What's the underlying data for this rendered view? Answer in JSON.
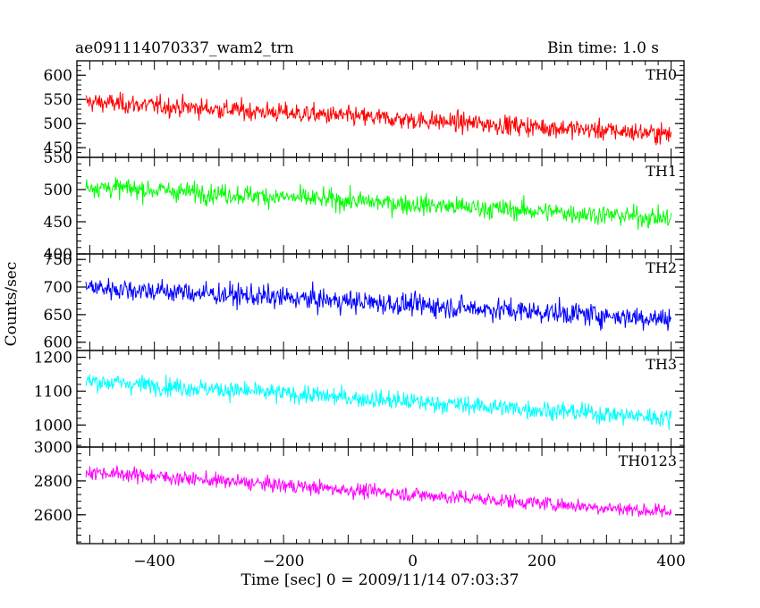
{
  "figure": {
    "title_left": "ae091114070337_wam2_trn",
    "title_right": "Bin time: 1.0 s"
  },
  "chart_data": {
    "type": "line",
    "xlabel": "Time [sec] 0 = 2009/11/14 07:03:37",
    "ylabel": "Counts/sec",
    "xlim": [
      -520,
      420
    ],
    "x_ticks": [
      -400,
      -200,
      0,
      200,
      400
    ],
    "x_start": -506,
    "x_end": 400,
    "bin_time": 1.0,
    "panels": [
      {
        "name": "TH0",
        "color": "#ff0000",
        "ylim": [
          430,
          630
        ],
        "y_ticks": [
          450,
          500,
          550,
          600
        ],
        "trend": {
          "start": 545,
          "end": 478
        },
        "scatter": 26
      },
      {
        "name": "TH1",
        "color": "#00ff00",
        "ylim": [
          400,
          550
        ],
        "y_ticks": [
          400,
          450,
          500,
          550
        ],
        "trend": {
          "start": 505,
          "end": 455
        },
        "scatter": 20
      },
      {
        "name": "TH2",
        "color": "#0000ff",
        "ylim": [
          585,
          760
        ],
        "y_ticks": [
          600,
          650,
          700,
          750
        ],
        "trend": {
          "start": 700,
          "end": 642
        },
        "scatter": 26
      },
      {
        "name": "TH3",
        "color": "#00ffff",
        "ylim": [
          935,
          1220
        ],
        "y_ticks": [
          1000,
          1100,
          1200
        ],
        "trend": {
          "start": 1130,
          "end": 1020
        },
        "scatter": 35
      },
      {
        "name": "TH0123",
        "color": "#ff00ff",
        "ylim": [
          2430,
          3000
        ],
        "y_ticks": [
          2600,
          2800,
          3000
        ],
        "trend": {
          "start": 2855,
          "end": 2615
        },
        "scatter": 55
      }
    ]
  }
}
